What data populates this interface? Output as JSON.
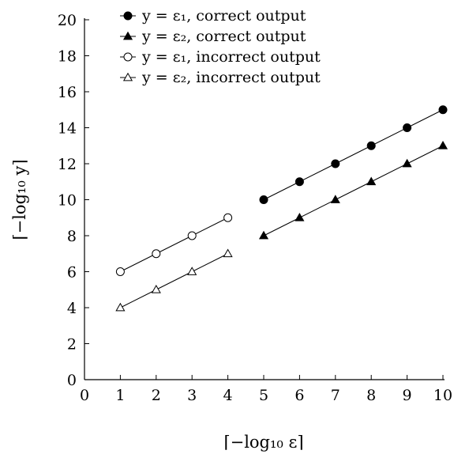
{
  "chart_data": {
    "type": "line",
    "xlabel": "⌈−log₁₀ ε⌉",
    "ylabel": "⌈−log₁₀ y⌉",
    "xlim": [
      0,
      10
    ],
    "ylim": [
      0,
      20
    ],
    "xticks": [
      "0",
      "1",
      "2",
      "3",
      "4",
      "5",
      "6",
      "7",
      "8",
      "9",
      "10"
    ],
    "yticks": [
      "0",
      "2",
      "4",
      "6",
      "8",
      "10",
      "12",
      "14",
      "16",
      "18",
      "20"
    ],
    "grid": false,
    "legend_position": "top-left",
    "series": [
      {
        "name": "y = ε₁, correct output",
        "marker": "filled-circle",
        "x": [
          5,
          6,
          7,
          8,
          9,
          10
        ],
        "y": [
          10,
          11,
          12,
          13,
          14,
          15
        ]
      },
      {
        "name": "y = ε₂, correct output",
        "marker": "filled-triangle",
        "x": [
          5,
          6,
          7,
          8,
          9,
          10
        ],
        "y": [
          8,
          9,
          10,
          11,
          12,
          13
        ]
      },
      {
        "name": "y = ε₁, incorrect output",
        "marker": "open-circle",
        "x": [
          1,
          2,
          3,
          4
        ],
        "y": [
          6,
          7,
          8,
          9
        ]
      },
      {
        "name": "y = ε₂, incorrect output",
        "marker": "open-triangle",
        "x": [
          1,
          2,
          3,
          4
        ],
        "y": [
          4,
          5,
          6,
          7
        ]
      }
    ]
  }
}
